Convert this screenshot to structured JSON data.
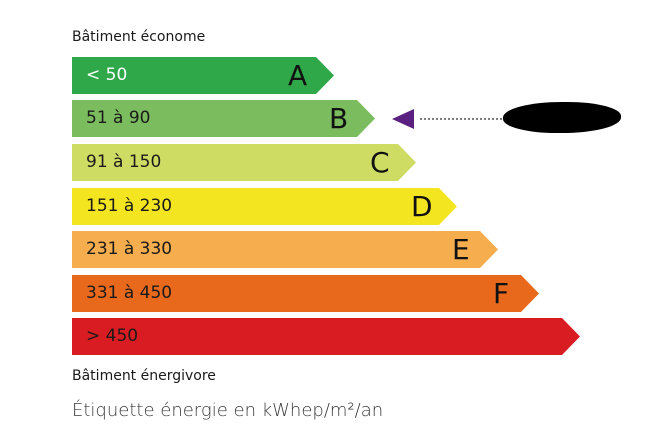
{
  "top_label": "Bâtiment économe",
  "bottom_label": "Bâtiment énergivore",
  "caption": "Étiquette énergie en kWhep/m²/an",
  "classes": [
    {
      "letter": "A",
      "range": "< 50",
      "color": "#2fa84a"
    },
    {
      "letter": "B",
      "range": "51 à 90",
      "color": "#7bbd5e"
    },
    {
      "letter": "C",
      "range": "91 à 150",
      "color": "#cfdc63"
    },
    {
      "letter": "D",
      "range": "151 à 230",
      "color": "#f3e520"
    },
    {
      "letter": "E",
      "range": "231 à 330",
      "color": "#f5ad4e"
    },
    {
      "letter": "F",
      "range": "331 à 450",
      "color": "#e8691c"
    },
    {
      "letter": "",
      "range": "> 450",
      "color": "#d91c22"
    }
  ],
  "indicator": {
    "class": "B",
    "color": "#5b2180",
    "icon": "arrow-left-icon"
  }
}
